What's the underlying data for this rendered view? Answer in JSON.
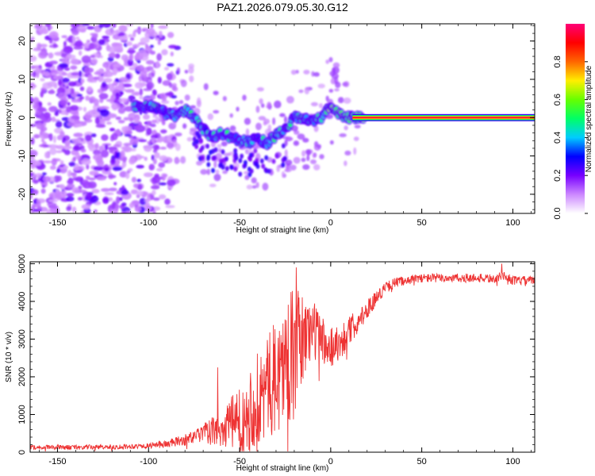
{
  "title": "PAZ1.2026.079.05.30.G12",
  "chart_data": [
    {
      "type": "heatmap",
      "xlabel": "Height of straight line (km)",
      "ylabel": "Frequency (Hz)",
      "xlim": [
        -165,
        112
      ],
      "ylim": [
        -25,
        24.5
      ],
      "xticks": [
        -150,
        -100,
        -50,
        0,
        50,
        100
      ],
      "yticks": [
        -20,
        -10,
        0,
        10,
        20
      ],
      "colorbar": {
        "label": "Normalized spectral amplitude",
        "range": [
          0,
          1
        ],
        "ticks": [
          "0.0",
          "0.2",
          "0.4",
          "0.6",
          "0.8"
        ],
        "tick_values": [
          0,
          0.2,
          0.4,
          0.6,
          0.8
        ],
        "colors": [
          "#ffffff",
          "#cc88ff",
          "#7700ff",
          "#0000ff",
          "#00ccff",
          "#00ff66",
          "#66ff00",
          "#ffee00",
          "#ff6600",
          "#ff0000",
          "#ff0077"
        ]
      },
      "ridge": {
        "x": [
          -108,
          -100,
          -95,
          -90,
          -85,
          -80,
          -75,
          -70,
          -65,
          -60,
          -55,
          -50,
          -45,
          -40,
          -35,
          -30,
          -25,
          -20,
          -15,
          -10,
          -5,
          0,
          5,
          10,
          15,
          20,
          50,
          112
        ],
        "y": [
          3,
          3,
          2.5,
          1,
          0.5,
          2,
          0,
          -3,
          -5,
          -4,
          -5,
          -6,
          -6.5,
          -5,
          -7,
          -4.5,
          -3,
          0,
          0,
          -1,
          0,
          3,
          1,
          0,
          0,
          0,
          0,
          0
        ]
      },
      "description_regions": {
        "noise_x_range": [
          -165,
          -90
        ],
        "noise_y_range": [
          -25,
          24.5
        ]
      }
    },
    {
      "type": "line",
      "xlabel": "Height of straight line (km)",
      "ylabel": "SNR (10 * v/v)",
      "xlim": [
        -165,
        112
      ],
      "ylim": [
        0,
        5050
      ],
      "xticks": [
        -150,
        -100,
        -50,
        0,
        50,
        100
      ],
      "yticks": [
        0,
        1000,
        2000,
        3000,
        4000,
        5000
      ],
      "color": "#ee3333",
      "trend": {
        "x": [
          -165,
          -140,
          -120,
          -100,
          -90,
          -80,
          -70,
          -60,
          -50,
          -45,
          -40,
          -35,
          -30,
          -25,
          -20,
          -15,
          -10,
          -5,
          0,
          5,
          10,
          15,
          20,
          25,
          30,
          35,
          40,
          50,
          60,
          70,
          80,
          90,
          95,
          100,
          112
        ],
        "y": [
          130,
          130,
          140,
          170,
          220,
          320,
          500,
          600,
          900,
          1100,
          1400,
          1700,
          2000,
          2400,
          2600,
          3000,
          3300,
          3000,
          2800,
          2900,
          3200,
          3500,
          3800,
          4100,
          4350,
          4500,
          4550,
          4620,
          4620,
          4620,
          4620,
          4600,
          4700,
          4550,
          4550
        ]
      },
      "noise_amplitude": {
        "x": [
          -165,
          -100,
          -80,
          -70,
          -60,
          -50,
          -40,
          -30,
          -20,
          -15,
          -10,
          0,
          10,
          20,
          30,
          40,
          112
        ],
        "y": [
          60,
          70,
          150,
          250,
          500,
          900,
          1300,
          1500,
          1800,
          1200,
          800,
          600,
          400,
          250,
          150,
          120,
          120
        ]
      },
      "peaks": [
        {
          "x": -62,
          "y": 2250
        },
        {
          "x": -19,
          "y": 4900
        },
        {
          "x": 94,
          "y": 5000
        }
      ]
    }
  ]
}
